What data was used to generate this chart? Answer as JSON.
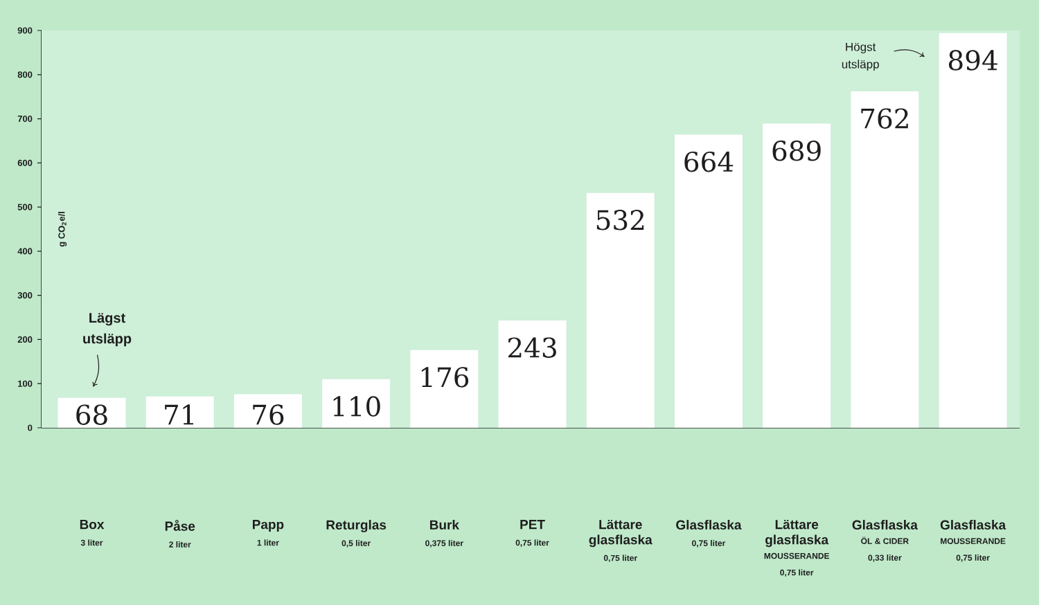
{
  "chart_data": {
    "type": "bar",
    "categories": [
      "Box\n3 liter",
      "Påse\n2 liter",
      "Papp\n1 liter",
      "Returglas\n0,5 liter",
      "Burk\n0,375 liter",
      "PET\n0,75 liter",
      "Lättare glasflaska\n0,75 liter",
      "Glasflaska\n0,75 liter",
      "Lättare glasflaska\nMOUSSERANDE\n0,75 liter",
      "Glasflaska\nÖL & CIDER\n0,33 liter",
      "Glasflaska\nMOUSSERANDE\n0,75 liter"
    ],
    "values": [
      68,
      71,
      76,
      110,
      176,
      243,
      532,
      664,
      689,
      762,
      894
    ],
    "color": "#ffffff",
    "ylabel": "g CO$_{2}$e/l",
    "ylim": [
      0,
      900
    ],
    "yticks": [
      0,
      100,
      200,
      300,
      400,
      500,
      600,
      700,
      800,
      900
    ],
    "data_labels": true,
    "annotations": [
      {
        "text": "Lägst utsläpp",
        "x": "Box\n3 liter",
        "y": 68
      },
      "Högst utsläpp"
    ]
  }
}
